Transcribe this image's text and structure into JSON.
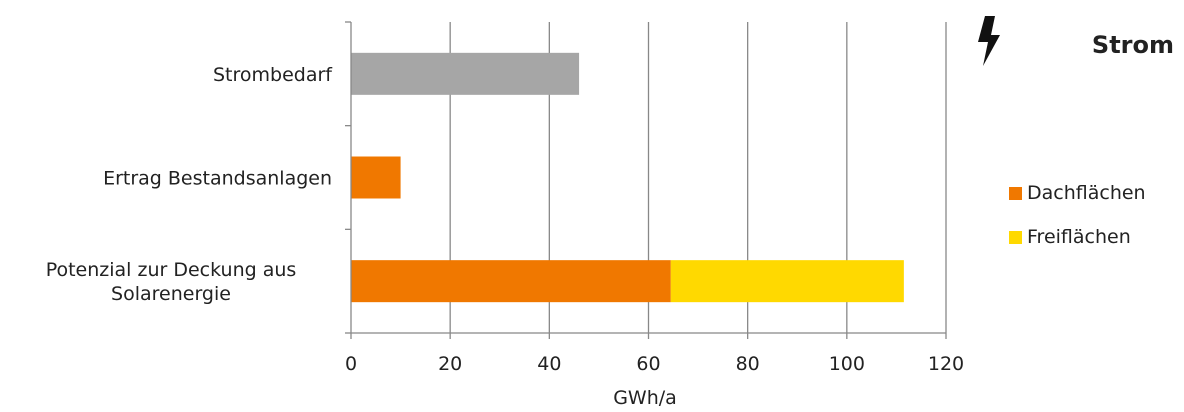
{
  "header": {
    "title": "Strom",
    "icon": "lightning-bolt-icon"
  },
  "chart_data": {
    "type": "bar",
    "orientation": "horizontal",
    "stacked": true,
    "categories": [
      "Strombedarf",
      "Ertrag Bestandsanlagen",
      "Potenzial zur Deckung aus Solarenergie"
    ],
    "category_lines": [
      [
        "Strombedarf"
      ],
      [
        "Ertrag Bestandsanlagen"
      ],
      [
        "Potenzial zur Deckung aus",
        "Solarenergie"
      ]
    ],
    "series": [
      {
        "name": "",
        "color": "#a6a6a6",
        "values": [
          46,
          null,
          null
        ]
      },
      {
        "name": "Dachflächen",
        "color": "#f07800",
        "values": [
          null,
          10,
          64.5
        ]
      },
      {
        "name": "Freiflächen",
        "color": "#ffd900",
        "values": [
          null,
          null,
          47
        ]
      }
    ],
    "xlabel": "GWh/a",
    "xlim": [
      0,
      120
    ],
    "xticks": [
      0,
      20,
      40,
      60,
      80,
      100,
      120
    ],
    "grid": true,
    "legend_position": "right",
    "colors": {
      "gridline": "#888888",
      "axis": "#888888"
    }
  }
}
